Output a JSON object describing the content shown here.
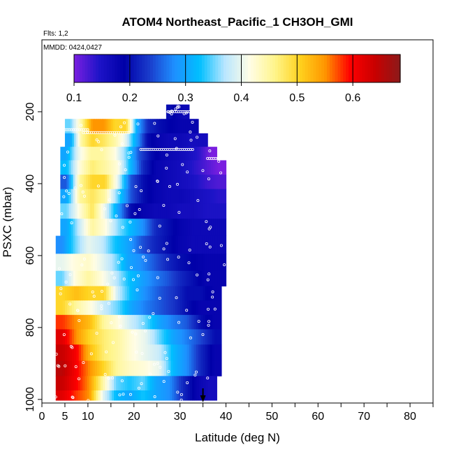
{
  "chart_data": {
    "type": "heatmap",
    "title": "ATOM4 Northeast_Pacific_1 CH3OH_GMI",
    "flights_label": "Flts: 1,2",
    "dates_label": "MMDD: 0424,0427",
    "xlabel": "Latitude (deg N)",
    "ylabel": "PSXC (mbar)",
    "xlim": [
      0,
      85
    ],
    "ylim": [
      1010,
      0
    ],
    "x_ticks": [
      0,
      5,
      10,
      20,
      30,
      40,
      50,
      60,
      70,
      80
    ],
    "x_tick_labels": [
      "0",
      "5",
      "10",
      "20",
      "30",
      "40",
      "50",
      "60",
      "70",
      "80"
    ],
    "x_minor_ticks": [
      15,
      25,
      35,
      45,
      55,
      65,
      75,
      85
    ],
    "y_ticks": [
      200,
      400,
      600,
      800,
      1000
    ],
    "y_tick_labels": [
      "200",
      "400",
      "600",
      "800",
      "1000"
    ],
    "colorbar": {
      "range": [
        0.1,
        0.6
      ],
      "ticks": [
        0.1,
        0.2,
        0.3,
        0.4,
        0.5,
        0.6
      ],
      "tick_labels": [
        "0.1",
        "0.2",
        "0.3",
        "0.4",
        "0.5",
        "0.6"
      ],
      "range_max": 0.685,
      "colors": [
        "#7a1fe0",
        "#1e14c8",
        "#0000a8",
        "#1a3ccc",
        "#1e90ff",
        "#00bfff",
        "#b8e6ff",
        "#fffde6",
        "#fff58c",
        "#ffd21e",
        "#ff9600",
        "#ff0000",
        "#c80000",
        "#8b1a1a"
      ]
    },
    "layers": [
      {
        "p": 200,
        "x0": 27,
        "x1": 32,
        "values": [
          0.2,
          0.18,
          0.17
        ]
      },
      {
        "p": 240,
        "x0": 5,
        "x1": 34,
        "values": [
          0.35,
          0.45,
          0.55,
          0.55,
          0.5,
          0.5,
          0.3,
          0.22,
          0.2,
          0.19,
          0.18,
          0.18
        ]
      },
      {
        "p": 280,
        "x0": 5,
        "x1": 36,
        "values": [
          0.3,
          0.45,
          0.5,
          0.48,
          0.45,
          0.4,
          0.3,
          0.2,
          0.18,
          0.17,
          0.17,
          0.16,
          0.16
        ]
      },
      {
        "p": 315,
        "x0": 4,
        "x1": 38,
        "values": [
          0.3,
          0.4,
          0.45,
          0.45,
          0.42,
          0.35,
          0.25,
          0.2,
          0.18,
          0.17,
          0.16,
          0.14,
          0.1
        ]
      },
      {
        "p": 355,
        "x0": 4,
        "x1": 40,
        "values": [
          0.32,
          0.42,
          0.47,
          0.45,
          0.42,
          0.32,
          0.22,
          0.18,
          0.17,
          0.16,
          0.14,
          0.12,
          0.1
        ]
      },
      {
        "p": 395,
        "x0": 4,
        "x1": 40,
        "values": [
          0.25,
          0.45,
          0.5,
          0.5,
          0.4,
          0.25,
          0.2,
          0.18,
          0.17,
          0.16,
          0.15,
          0.13,
          0.12
        ]
      },
      {
        "p": 435,
        "x0": 4,
        "x1": 40,
        "values": [
          0.3,
          0.45,
          0.48,
          0.45,
          0.35,
          0.25,
          0.2,
          0.18,
          0.17,
          0.17,
          0.16,
          0.15,
          0.14
        ]
      },
      {
        "p": 475,
        "x0": 4,
        "x1": 40,
        "values": [
          0.35,
          0.42,
          0.48,
          0.4,
          0.3,
          0.2,
          0.18,
          0.17,
          0.17,
          0.16,
          0.16,
          0.15,
          0.15
        ]
      },
      {
        "p": 520,
        "x0": 4,
        "x1": 40,
        "values": [
          0.3,
          0.38,
          0.45,
          0.42,
          0.36,
          0.32,
          0.28,
          0.22,
          0.2,
          0.18,
          0.17,
          0.17,
          0.17
        ]
      },
      {
        "p": 570,
        "x0": 3,
        "x1": 40,
        "values": [
          0.28,
          0.35,
          0.4,
          0.38,
          0.33,
          0.3,
          0.25,
          0.22,
          0.2,
          0.18,
          0.17,
          0.17,
          0.17
        ]
      },
      {
        "p": 620,
        "x0": 3,
        "x1": 40,
        "values": [
          0.4,
          0.42,
          0.43,
          0.4,
          0.36,
          0.3,
          0.28,
          0.25,
          0.22,
          0.2,
          0.19,
          0.18,
          0.18
        ]
      },
      {
        "p": 665,
        "x0": 3,
        "x1": 40,
        "values": [
          0.35,
          0.42,
          0.45,
          0.42,
          0.38,
          0.33,
          0.3,
          0.27,
          0.25,
          0.22,
          0.2,
          0.18,
          0.18
        ]
      },
      {
        "p": 705,
        "x0": 3,
        "x1": 39,
        "values": [
          0.5,
          0.52,
          0.5,
          0.5,
          0.38,
          0.32,
          0.28,
          0.25,
          0.23,
          0.2,
          0.2,
          0.18
        ]
      },
      {
        "p": 745,
        "x0": 3,
        "x1": 39,
        "values": [
          0.5,
          0.45,
          0.42,
          0.38,
          0.35,
          0.3,
          0.27,
          0.25,
          0.23,
          0.2,
          0.18,
          0.18
        ]
      },
      {
        "p": 785,
        "x0": 3,
        "x1": 39,
        "values": [
          0.58,
          0.55,
          0.52,
          0.45,
          0.42,
          0.38,
          0.35,
          0.3,
          0.27,
          0.25,
          0.2,
          0.18
        ]
      },
      {
        "p": 825,
        "x0": 3,
        "x1": 39,
        "values": [
          0.62,
          0.55,
          0.5,
          0.47,
          0.45,
          0.42,
          0.4,
          0.35,
          0.3,
          0.27,
          0.24,
          0.2
        ]
      },
      {
        "p": 870,
        "x0": 3,
        "x1": 39,
        "values": [
          0.64,
          0.6,
          0.52,
          0.47,
          0.45,
          0.42,
          0.4,
          0.38,
          0.32,
          0.28,
          0.22,
          0.18
        ]
      },
      {
        "p": 915,
        "x0": 3,
        "x1": 39,
        "values": [
          0.65,
          0.6,
          0.55,
          0.5,
          0.45,
          0.43,
          0.42,
          0.4,
          0.32,
          0.28,
          0.22,
          0.18
        ]
      },
      {
        "p": 955,
        "x0": 3,
        "x1": 38,
        "values": [
          0.64,
          0.6,
          0.55,
          0.45,
          0.35,
          0.33,
          0.35,
          0.3,
          0.28,
          0.22,
          0.18,
          0.16
        ]
      },
      {
        "p": 995,
        "x0": 3,
        "x1": 38,
        "values": [
          0.62,
          0.58,
          0.55,
          0.4,
          0.32,
          0.3,
          0.33,
          0.3,
          0.28,
          0.22,
          0.18,
          0.16
        ]
      }
    ],
    "arrow": {
      "x": 35
    }
  }
}
